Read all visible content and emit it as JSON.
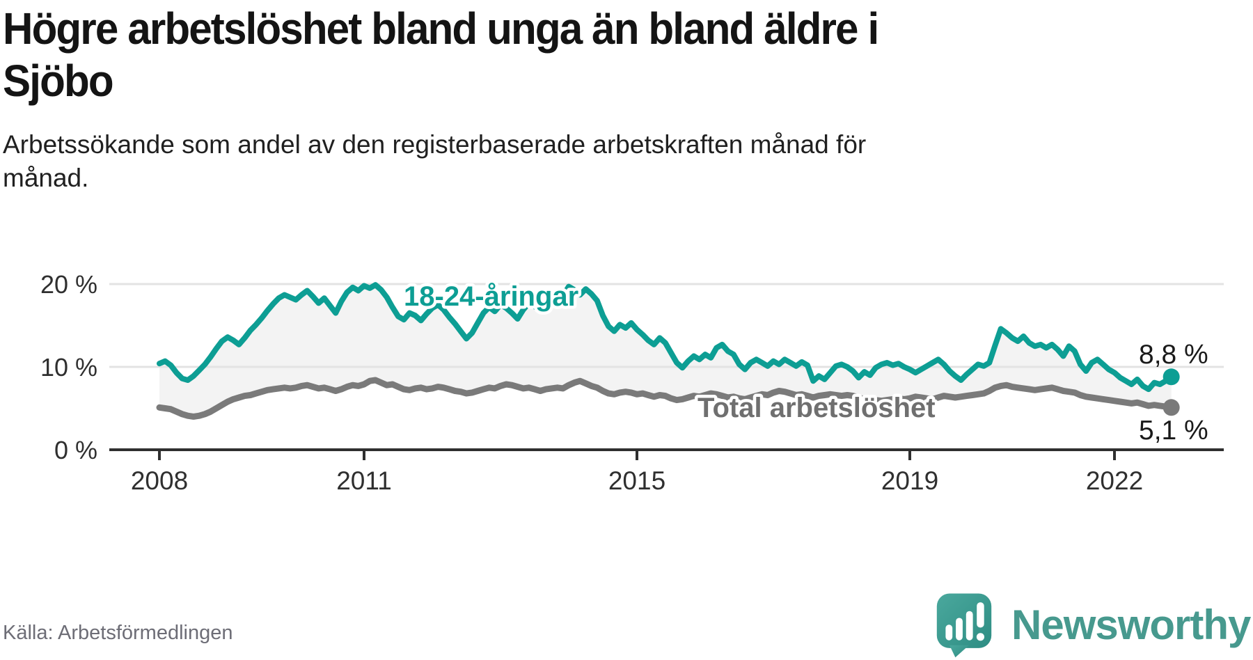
{
  "header": {
    "title_lines": [
      "Högre arbetslöshet bland unga än bland äldre i",
      "Sjöbo"
    ],
    "subtitle_lines": [
      "Arbetssökande som andel av den registerbaserade arbetskraften månad för",
      "månad."
    ]
  },
  "footer": {
    "source": "Källa: Arbetsförmedlingen",
    "brand": "Newsworthy",
    "logo_icon": "bar-chart-speech-bubble-icon"
  },
  "colors": {
    "youth": "#0d9e94",
    "total": "#7a7a7a",
    "total_label": "#6f6f6f",
    "grid": "#e3e3e3",
    "axis": "#2f2f2f",
    "fill_between": "#f3f3f3",
    "value_label": "#1a1a1a",
    "brand_teal": "#47998e",
    "halo": "#ffffff"
  },
  "chart_data": {
    "type": "line",
    "title": "Högre arbetslöshet bland unga än bland äldre i Sjöbo",
    "subtitle": "Arbetssökande som andel av den registerbaserade arbetskraften månad för månad.",
    "unit": "%",
    "x_domain": {
      "start_year": 2008,
      "start_month": 1,
      "end_year": 2022,
      "end_month": 11,
      "step": "month"
    },
    "x_ticks": [
      2008,
      2011,
      2015,
      2019,
      2022
    ],
    "x_tick_labels": [
      "2008",
      "2011",
      "2015",
      "2019",
      "2022"
    ],
    "y_ticks": [
      0,
      10,
      20
    ],
    "y_tick_labels": [
      "0 %",
      "10 %",
      "20 %"
    ],
    "ylim": [
      0,
      21.8
    ],
    "grid": "horizontal-only",
    "legend_position": "inline-labels",
    "fill_between_series": true,
    "series": [
      {
        "name": "18-24-åringar",
        "end_label": "8,8 %",
        "end_value": 8.8,
        "values": [
          10.4,
          10.7,
          10.2,
          9.3,
          8.6,
          8.4,
          8.9,
          9.6,
          10.3,
          11.2,
          12.2,
          13.1,
          13.6,
          13.2,
          12.7,
          13.5,
          14.4,
          15.1,
          15.9,
          16.8,
          17.6,
          18.3,
          18.7,
          18.4,
          18.1,
          18.7,
          19.2,
          18.5,
          17.7,
          18.3,
          17.4,
          16.5,
          17.9,
          19.0,
          19.6,
          19.2,
          19.8,
          19.5,
          19.9,
          19.3,
          18.4,
          17.2,
          16.1,
          15.7,
          16.5,
          16.2,
          15.6,
          16.4,
          17.1,
          17.5,
          16.9,
          16.0,
          15.2,
          14.3,
          13.4,
          14.1,
          15.3,
          16.5,
          17.2,
          16.7,
          17.5,
          17.1,
          16.5,
          15.8,
          16.9,
          17.7,
          17.3,
          16.8,
          17.5,
          18.3,
          19.1,
          18.6,
          19.7,
          19.3,
          18.7,
          19.4,
          18.8,
          18.0,
          16.2,
          14.9,
          14.3,
          15.1,
          14.7,
          15.3,
          14.5,
          13.9,
          13.2,
          12.7,
          13.5,
          12.9,
          11.7,
          10.5,
          9.9,
          10.7,
          11.3,
          10.9,
          11.5,
          11.1,
          12.3,
          12.7,
          11.9,
          11.5,
          10.3,
          9.7,
          10.5,
          10.9,
          10.5,
          10.1,
          10.7,
          10.3,
          10.9,
          10.5,
          10.1,
          10.6,
          10.2,
          8.3,
          8.9,
          8.5,
          9.3,
          10.1,
          10.3,
          10.0,
          9.5,
          8.7,
          9.4,
          9.0,
          9.9,
          10.3,
          10.5,
          10.2,
          10.4,
          10.0,
          9.7,
          9.3,
          9.7,
          10.1,
          10.5,
          10.9,
          10.3,
          9.5,
          8.9,
          8.4,
          9.1,
          9.7,
          10.3,
          10.1,
          10.5,
          12.6,
          14.6,
          14.1,
          13.5,
          13.1,
          13.7,
          12.9,
          12.5,
          12.7,
          12.3,
          12.7,
          12.1,
          11.3,
          12.5,
          11.9,
          10.3,
          9.5,
          10.5,
          10.9,
          10.3,
          9.7,
          9.3,
          8.7,
          8.3,
          7.9,
          8.5,
          7.7,
          7.3,
          8.1,
          7.9,
          8.3,
          8.8
        ]
      },
      {
        "name": "Total arbetslöshet",
        "end_label": "5,1 %",
        "end_value": 5.1,
        "values": [
          5.1,
          5.0,
          4.9,
          4.6,
          4.3,
          4.1,
          4.0,
          4.1,
          4.3,
          4.6,
          5.0,
          5.4,
          5.8,
          6.1,
          6.3,
          6.5,
          6.6,
          6.8,
          7.0,
          7.2,
          7.3,
          7.4,
          7.5,
          7.4,
          7.5,
          7.7,
          7.8,
          7.6,
          7.4,
          7.5,
          7.3,
          7.1,
          7.3,
          7.6,
          7.8,
          7.7,
          7.9,
          8.3,
          8.4,
          8.1,
          7.8,
          7.9,
          7.6,
          7.3,
          7.2,
          7.4,
          7.5,
          7.3,
          7.4,
          7.6,
          7.5,
          7.3,
          7.1,
          7.0,
          6.8,
          6.9,
          7.1,
          7.3,
          7.5,
          7.4,
          7.7,
          7.9,
          7.8,
          7.6,
          7.4,
          7.5,
          7.3,
          7.1,
          7.3,
          7.4,
          7.5,
          7.4,
          7.8,
          8.1,
          8.3,
          8.0,
          7.7,
          7.5,
          7.1,
          6.8,
          6.7,
          6.9,
          7.0,
          6.9,
          6.7,
          6.8,
          6.6,
          6.4,
          6.6,
          6.5,
          6.2,
          6.0,
          6.1,
          6.3,
          6.5,
          6.4,
          6.6,
          6.8,
          6.7,
          6.5,
          6.3,
          6.4,
          6.2,
          6.1,
          6.3,
          6.5,
          6.7,
          6.6,
          6.9,
          7.1,
          7.0,
          6.8,
          6.6,
          6.7,
          6.5,
          6.3,
          6.5,
          6.6,
          6.7,
          6.6,
          6.5,
          6.6,
          6.5,
          6.3,
          6.1,
          6.2,
          6.0,
          5.9,
          6.0,
          6.1,
          6.2,
          6.1,
          6.2,
          6.4,
          6.3,
          6.2,
          6.1,
          6.3,
          6.5,
          6.4,
          6.3,
          6.4,
          6.5,
          6.6,
          6.7,
          6.8,
          7.1,
          7.5,
          7.7,
          7.8,
          7.6,
          7.5,
          7.4,
          7.3,
          7.2,
          7.3,
          7.4,
          7.5,
          7.3,
          7.1,
          7.0,
          6.9,
          6.6,
          6.4,
          6.3,
          6.2,
          6.1,
          6.0,
          5.9,
          5.8,
          5.7,
          5.6,
          5.7,
          5.5,
          5.3,
          5.4,
          5.3,
          5.2,
          5.1
        ]
      }
    ]
  }
}
